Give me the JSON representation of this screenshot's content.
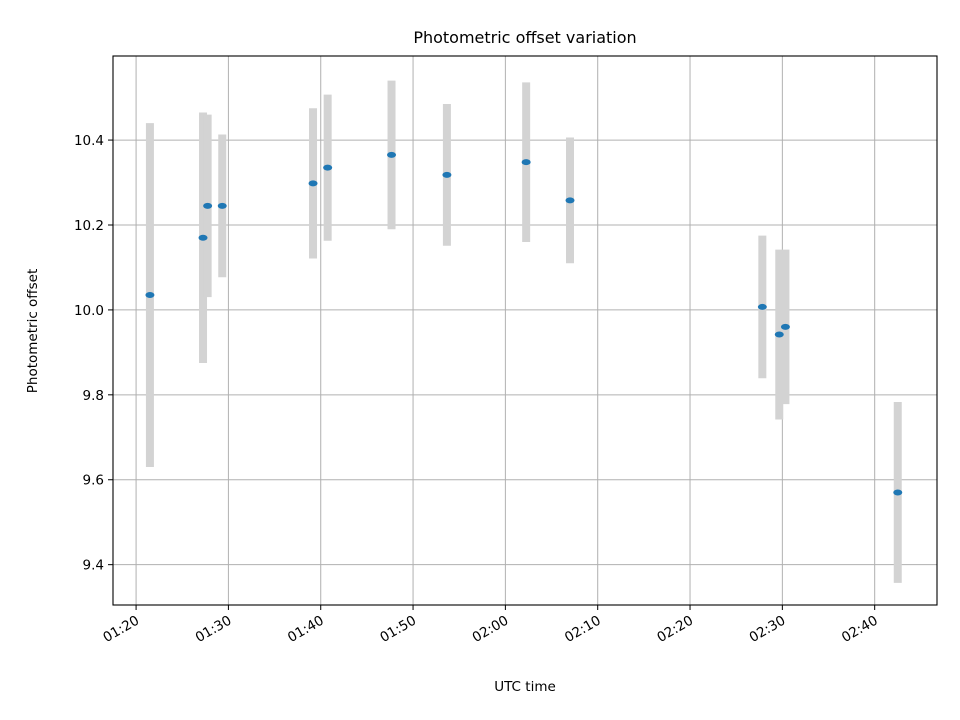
{
  "chart_data": {
    "type": "scatter",
    "title": "Photometric offset variation",
    "xlabel": "UTC time",
    "ylabel": "Photometric offset",
    "x_format": "HH:MM",
    "xlim": [
      "01:17:30",
      "02:46:45"
    ],
    "ylim": [
      9.305,
      10.598
    ],
    "xticks": [
      "01:20",
      "01:30",
      "01:40",
      "01:50",
      "02:00",
      "02:10",
      "02:20",
      "02:30",
      "02:40"
    ],
    "yticks": [
      "9.4",
      "9.6",
      "9.8",
      "10.0",
      "10.2",
      "10.4"
    ],
    "grid": true,
    "series": [
      {
        "marker_color": "#1f77b4",
        "errorbar_color": "#d3d3d3",
        "points": [
          {
            "x": "01:21:30",
            "y": 10.035,
            "err": 0.405
          },
          {
            "x": "01:27:15",
            "y": 10.17,
            "err": 0.295
          },
          {
            "x": "01:27:45",
            "y": 10.245,
            "err": 0.215
          },
          {
            "x": "01:29:20",
            "y": 10.245,
            "err": 0.168
          },
          {
            "x": "01:39:10",
            "y": 10.298,
            "err": 0.177
          },
          {
            "x": "01:40:45",
            "y": 10.335,
            "err": 0.172
          },
          {
            "x": "01:47:40",
            "y": 10.365,
            "err": 0.175
          },
          {
            "x": "01:53:40",
            "y": 10.318,
            "err": 0.167
          },
          {
            "x": "02:02:15",
            "y": 10.348,
            "err": 0.188
          },
          {
            "x": "02:07:00",
            "y": 10.258,
            "err": 0.148
          },
          {
            "x": "02:27:50",
            "y": 10.007,
            "err": 0.168
          },
          {
            "x": "02:29:40",
            "y": 9.942,
            "err": 0.2
          },
          {
            "x": "02:30:20",
            "y": 9.96,
            "err": 0.182
          },
          {
            "x": "02:42:30",
            "y": 9.57,
            "err": 0.213
          }
        ]
      }
    ]
  }
}
